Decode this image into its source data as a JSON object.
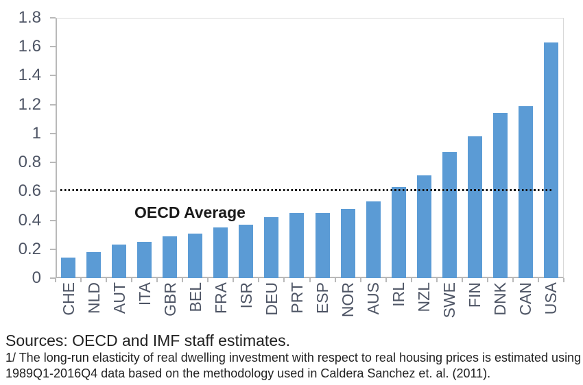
{
  "chart_data": {
    "type": "bar",
    "title": "",
    "xlabel": "",
    "ylabel": "",
    "categories": [
      "CHE",
      "NLD",
      "AUT",
      "ITA",
      "GBR",
      "BEL",
      "FRA",
      "ISR",
      "DEU",
      "PRT",
      "ESP",
      "NOR",
      "AUS",
      "IRL",
      "NZL",
      "SWE",
      "FIN",
      "DNK",
      "CAN",
      "USA"
    ],
    "values": [
      0.14,
      0.18,
      0.23,
      0.25,
      0.29,
      0.31,
      0.35,
      0.37,
      0.42,
      0.45,
      0.45,
      0.48,
      0.53,
      0.63,
      0.71,
      0.87,
      0.98,
      1.14,
      1.19,
      1.63
    ],
    "ylim": [
      0,
      1.8
    ],
    "ytick_labels": [
      "0",
      "0.2",
      "0.4",
      "0.6",
      "0.8",
      "1",
      "1.2",
      "1.4",
      "1.6",
      "1.8"
    ],
    "ytick_values": [
      0,
      0.2,
      0.4,
      0.6,
      0.8,
      1,
      1.2,
      1.4,
      1.6,
      1.8
    ],
    "grid": false,
    "legend_position": "none",
    "reference_line": {
      "value": 0.61,
      "label": "OECD Average",
      "style": "dotted",
      "color": "#111111"
    },
    "bar_color": "#5B9BD5",
    "axis_color": "#b9b9b9",
    "tick_label_color": "#4e5565"
  },
  "footer": {
    "sources": "Sources: OECD and IMF staff estimates.",
    "footnote_line1": "1/ The long-run elasticity of real dwelling investment with respect to real housing prices is estimated using",
    "footnote_line2": "1989Q1-2016Q4 data based on the methodology used in Caldera Sanchez et. al. (2011)."
  }
}
